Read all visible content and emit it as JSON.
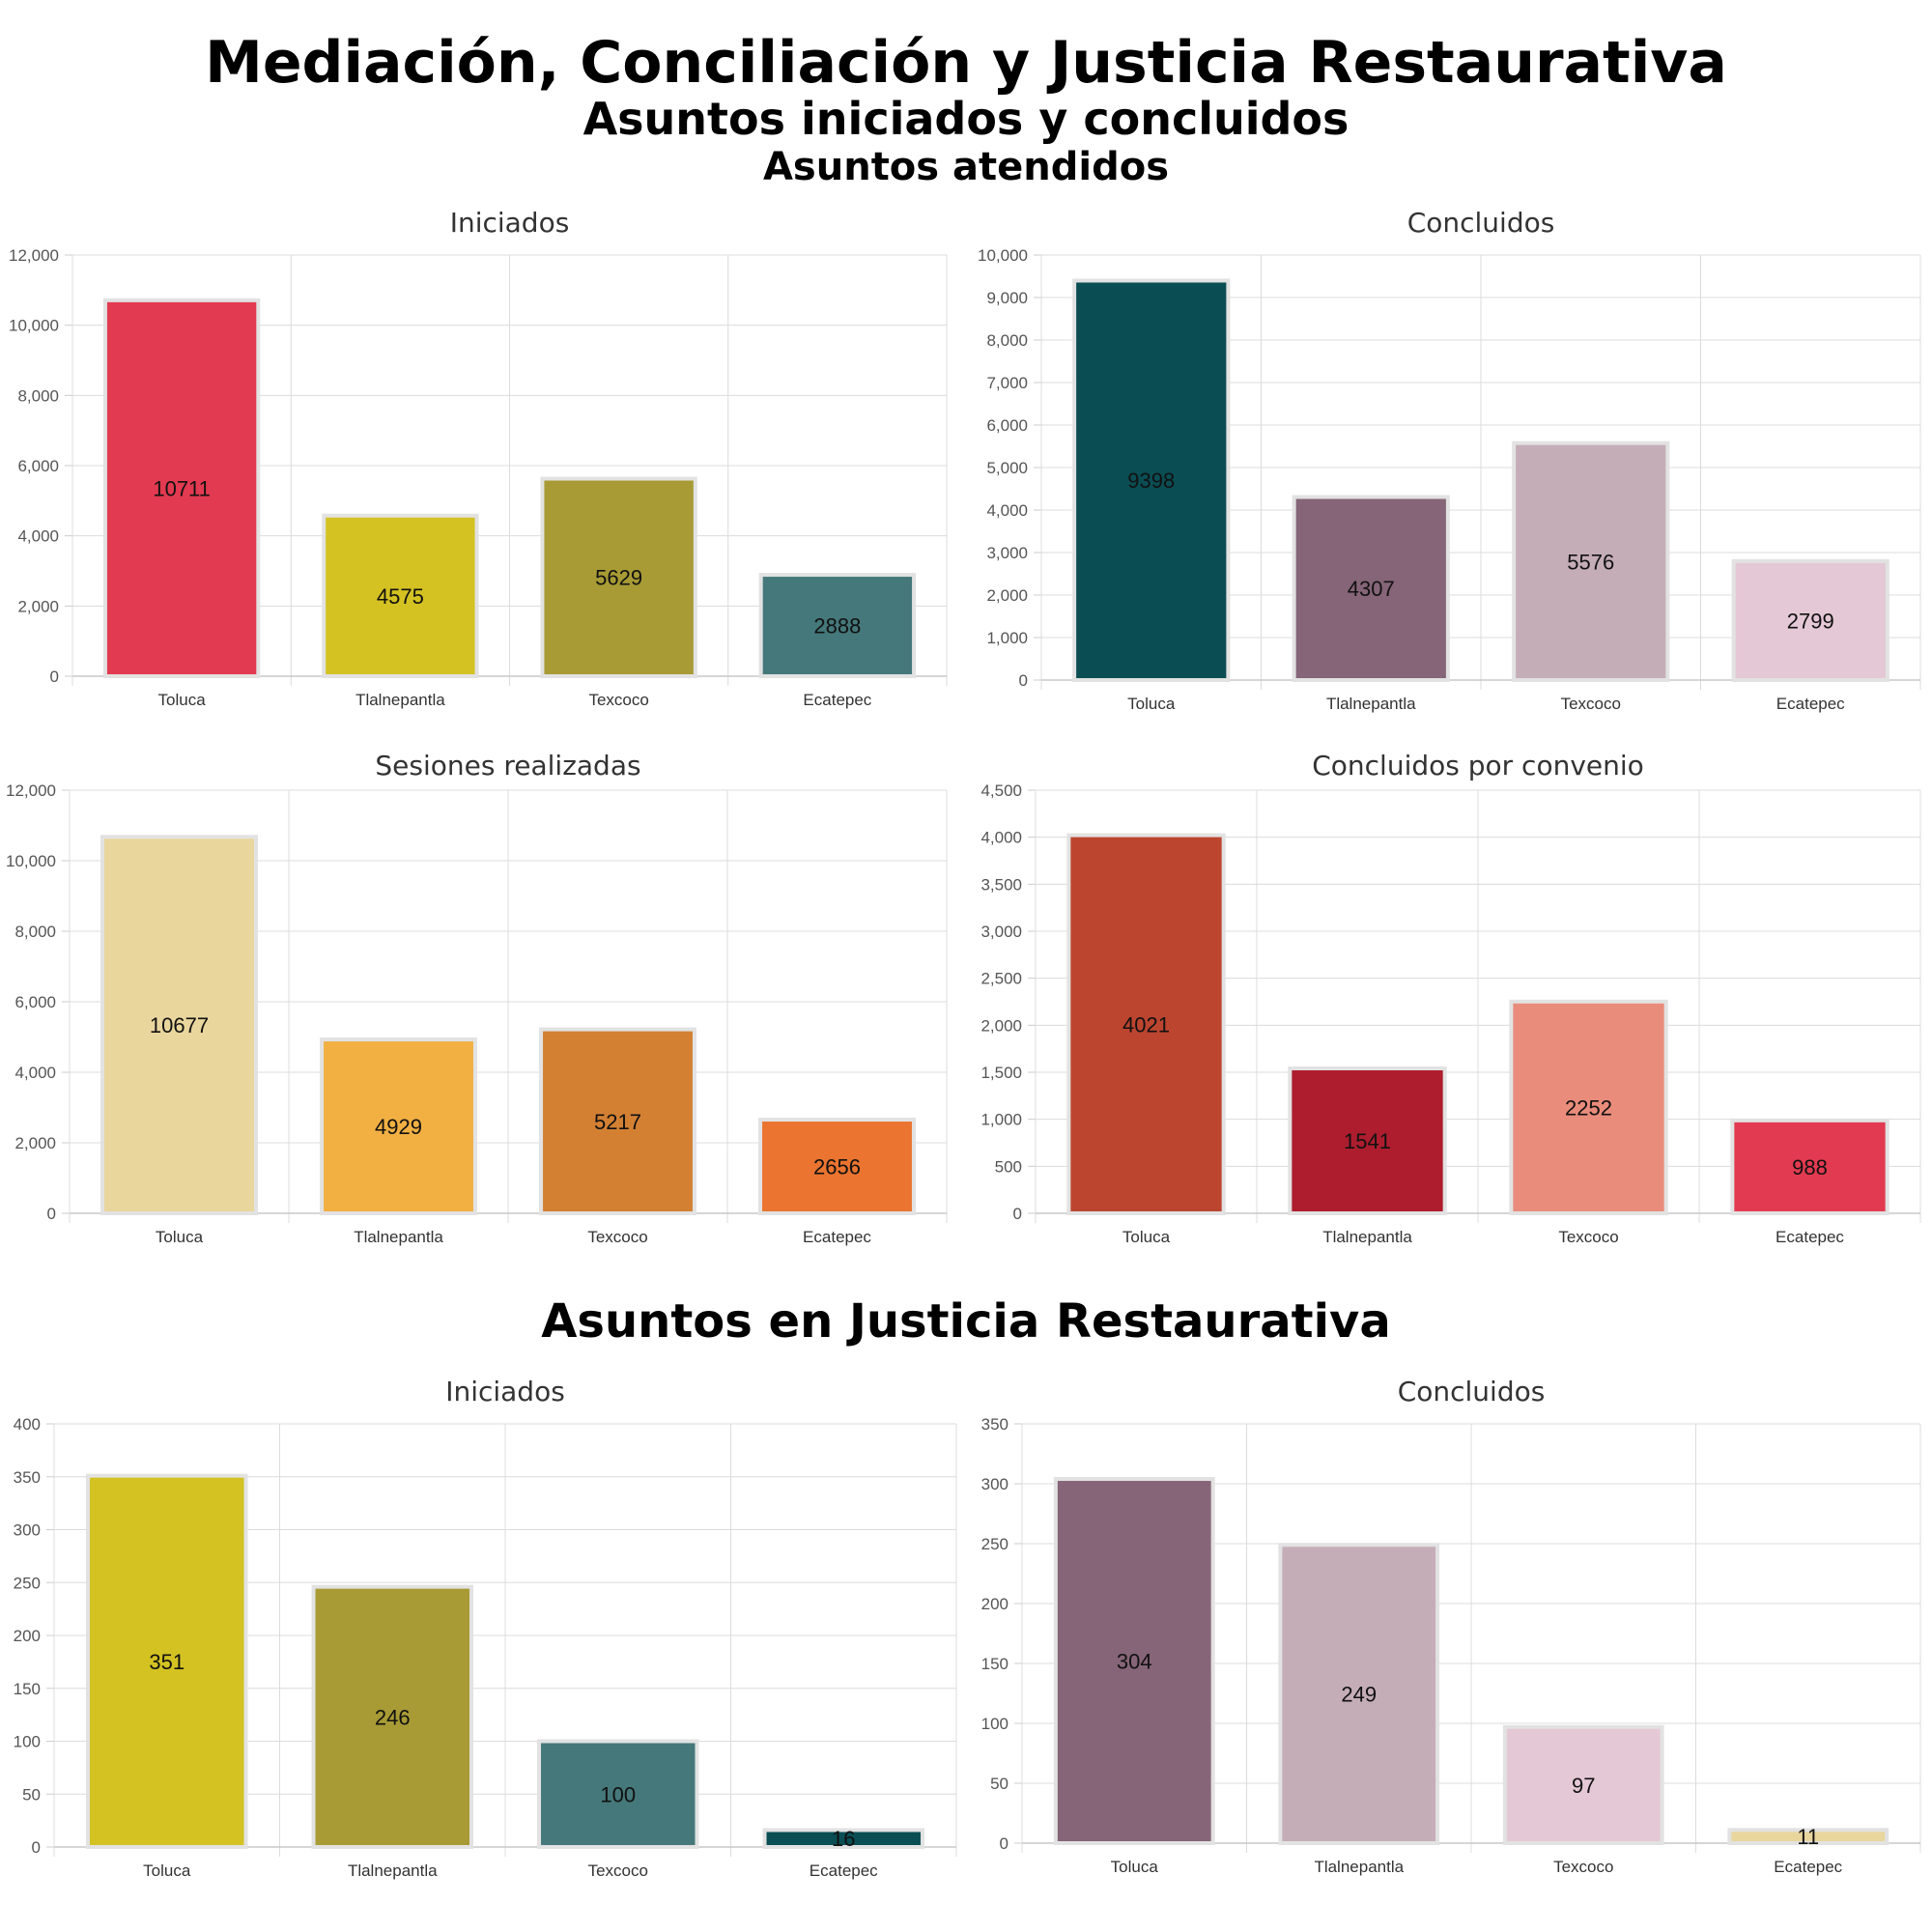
{
  "headings": {
    "main": "Mediación, Conciliación y Justicia Restaurativa",
    "sub1": "Asuntos iniciados y concluidos",
    "sub2": "Asuntos atendidos",
    "section2": "Asuntos en Justicia Restaurativa"
  },
  "chart_data": [
    {
      "type": "bar",
      "title": "Iniciados",
      "categories": [
        "Toluca",
        "Tlalnepantla",
        "Texcoco",
        "Ecatepec"
      ],
      "values": [
        10711,
        4575,
        5629,
        2888
      ],
      "colors": [
        "#e23a50",
        "#d4c223",
        "#a89b35",
        "#45787a"
      ],
      "ylim": [
        0,
        12000
      ],
      "yticks": [
        0,
        2000,
        4000,
        6000,
        8000,
        10000,
        12000
      ],
      "ytick_labels": [
        "0",
        "2,000",
        "4,000",
        "6,000",
        "8,000",
        "10,000",
        "12,000"
      ],
      "grid": true
    },
    {
      "type": "bar",
      "title": "Concluidos",
      "categories": [
        "Toluca",
        "Tlalnepantla",
        "Texcoco",
        "Ecatepec"
      ],
      "values": [
        9398,
        4307,
        5576,
        2799
      ],
      "colors": [
        "#0a4e54",
        "#856577",
        "#c5adb8",
        "#e5c8d5"
      ],
      "ylim": [
        0,
        10000
      ],
      "yticks": [
        0,
        1000,
        2000,
        3000,
        4000,
        5000,
        6000,
        7000,
        8000,
        9000,
        10000
      ],
      "ytick_labels": [
        "0",
        "1,000",
        "2,000",
        "3,000",
        "4,000",
        "5,000",
        "6,000",
        "7,000",
        "8,000",
        "9,000",
        "10,000"
      ],
      "grid": true
    },
    {
      "type": "bar",
      "title": "Sesiones realizadas",
      "categories": [
        "Toluca",
        "Tlalnepantla",
        "Texcoco",
        "Ecatepec"
      ],
      "values": [
        10677,
        4929,
        5217,
        2656
      ],
      "colors": [
        "#e9d69d",
        "#f2b043",
        "#d48033",
        "#ea7430"
      ],
      "ylim": [
        0,
        12000
      ],
      "yticks": [
        0,
        2000,
        4000,
        6000,
        8000,
        10000,
        12000
      ],
      "ytick_labels": [
        "0",
        "2,000",
        "4,000",
        "6,000",
        "8,000",
        "10,000",
        "12,000"
      ],
      "grid": true
    },
    {
      "type": "bar",
      "title": "Concluidos por convenio",
      "categories": [
        "Toluca",
        "Tlalnepantla",
        "Texcoco",
        "Ecatepec"
      ],
      "values": [
        4021,
        1541,
        2252,
        988
      ],
      "colors": [
        "#bc4530",
        "#ae1d2e",
        "#ea8c7b",
        "#e23a50"
      ],
      "ylim": [
        0,
        4500
      ],
      "yticks": [
        0,
        500,
        1000,
        1500,
        2000,
        2500,
        3000,
        3500,
        4000,
        4500
      ],
      "ytick_labels": [
        "0",
        "500",
        "1,000",
        "1,500",
        "2,000",
        "2,500",
        "3,000",
        "3,500",
        "4,000",
        "4,500"
      ],
      "grid": true
    },
    {
      "type": "bar",
      "title": "Iniciados",
      "categories": [
        "Toluca",
        "Tlalnepantla",
        "Texcoco",
        "Ecatepec"
      ],
      "values": [
        351,
        246,
        100,
        16
      ],
      "colors": [
        "#d4c223",
        "#a89b35",
        "#45787a",
        "#0a4e54"
      ],
      "ylim": [
        0,
        400
      ],
      "yticks": [
        0,
        50,
        100,
        150,
        200,
        250,
        300,
        350,
        400
      ],
      "ytick_labels": [
        "0",
        "50",
        "100",
        "150",
        "200",
        "250",
        "300",
        "350",
        "400"
      ],
      "grid": true
    },
    {
      "type": "bar",
      "title": "Concluidos",
      "categories": [
        "Toluca",
        "Tlalnepantla",
        "Texcoco",
        "Ecatepec"
      ],
      "values": [
        304,
        249,
        97,
        11
      ],
      "colors": [
        "#856577",
        "#c5adb8",
        "#e5c8d5",
        "#e9d69d"
      ],
      "ylim": [
        0,
        350
      ],
      "yticks": [
        0,
        50,
        100,
        150,
        200,
        250,
        300,
        350
      ],
      "ytick_labels": [
        "0",
        "50",
        "100",
        "150",
        "200",
        "250",
        "300",
        "350"
      ],
      "grid": true
    }
  ]
}
